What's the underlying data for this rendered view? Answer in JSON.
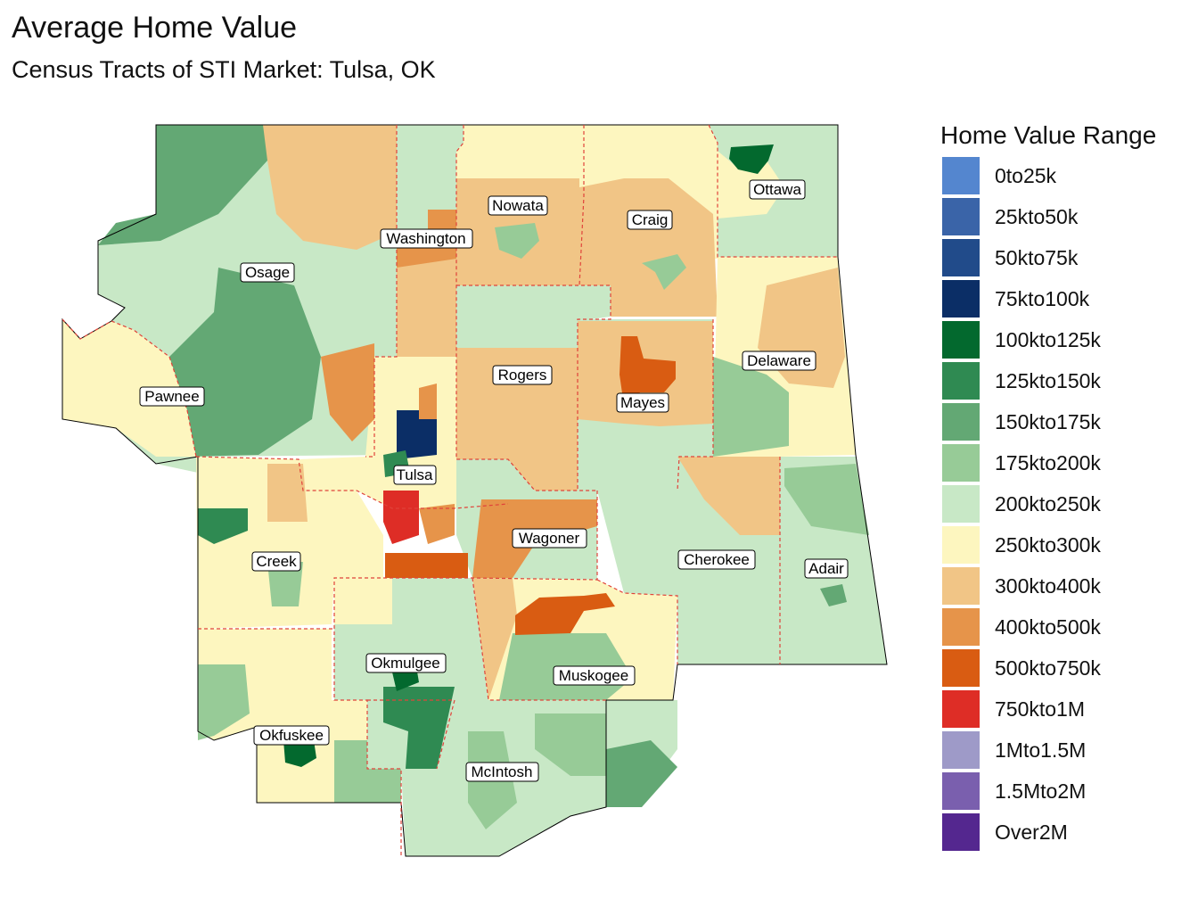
{
  "title": "Average Home Value",
  "subtitle": "Census Tracts of STI Market: Tulsa, OK",
  "legend": {
    "title": "Home Value Range",
    "items": [
      {
        "label": "0to25k",
        "color": "#5486cf"
      },
      {
        "label": "25kto50k",
        "color": "#3a64a8"
      },
      {
        "label": "50kto75k",
        "color": "#214b8a"
      },
      {
        "label": "75kto100k",
        "color": "#0b2e66"
      },
      {
        "label": "100kto125k",
        "color": "#03692e"
      },
      {
        "label": "125kto150k",
        "color": "#2f8a52"
      },
      {
        "label": "150kto175k",
        "color": "#63a874"
      },
      {
        "label": "175kto200k",
        "color": "#97cb97"
      },
      {
        "label": "200kto250k",
        "color": "#c8e8c6"
      },
      {
        "label": "250kto300k",
        "color": "#fdf6bf"
      },
      {
        "label": "300kto400k",
        "color": "#f1c586"
      },
      {
        "label": "400kto500k",
        "color": "#e6944a"
      },
      {
        "label": "500kto750k",
        "color": "#d95c12"
      },
      {
        "label": "750kto1M",
        "color": "#de2d26"
      },
      {
        "label": "1Mto1.5M",
        "color": "#9e9ac8"
      },
      {
        "label": "1.5Mto2M",
        "color": "#7a5fae"
      },
      {
        "label": "Over2M",
        "color": "#54278f"
      }
    ]
  },
  "counties": {
    "osage": "Osage",
    "pawnee": "Pawnee",
    "washington": "Washington",
    "nowata": "Nowata",
    "craig": "Craig",
    "ottawa": "Ottawa",
    "rogers": "Rogers",
    "mayes": "Mayes",
    "delaware": "Delaware",
    "tulsa": "Tulsa",
    "creek": "Creek",
    "wagoner": "Wagoner",
    "cherokee": "Cherokee",
    "adair": "Adair",
    "okmulgee": "Okmulgee",
    "muskogee": "Muskogee",
    "okfuskee": "Okfuskee",
    "mcintosh": "McIntosh"
  }
}
